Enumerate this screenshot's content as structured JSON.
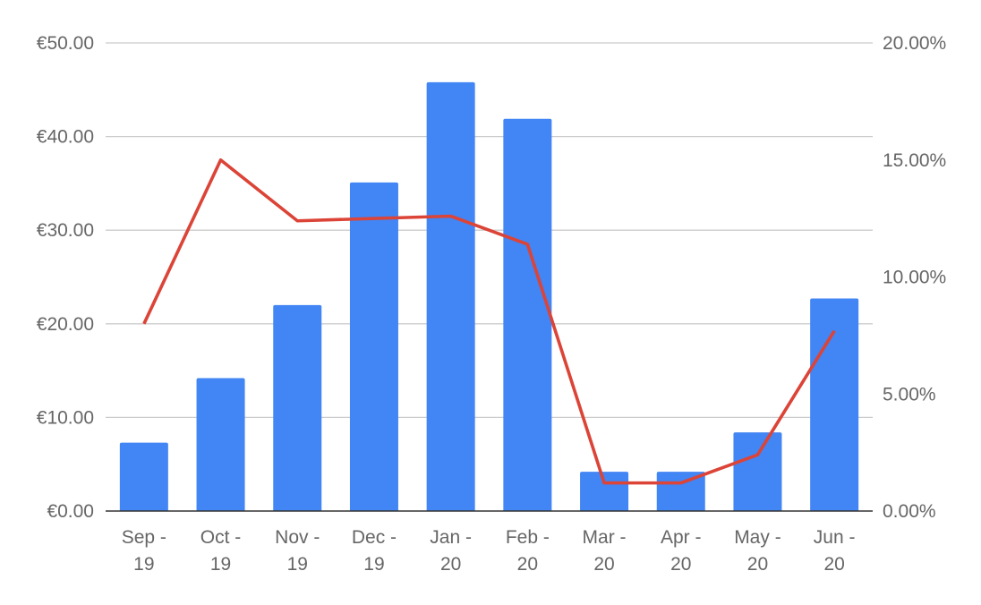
{
  "chart_data": {
    "type": "bar",
    "categories": [
      "Sep - 19",
      "Oct - 19",
      "Nov - 19",
      "Dec - 19",
      "Jan - 20",
      "Feb - 20",
      "Mar - 20",
      "Apr - 20",
      "May - 20",
      "Jun - 20"
    ],
    "category_lines": [
      [
        "Sep -",
        "19"
      ],
      [
        "Oct -",
        "19"
      ],
      [
        "Nov -",
        "19"
      ],
      [
        "Dec -",
        "19"
      ],
      [
        "Jan -",
        "20"
      ],
      [
        "Feb -",
        "20"
      ],
      [
        "Mar -",
        "20"
      ],
      [
        "Apr -",
        "20"
      ],
      [
        "May -",
        "20"
      ],
      [
        "Jun -",
        "20"
      ]
    ],
    "series": [
      {
        "type": "bar",
        "axis": "left",
        "color": "#4285f4",
        "values": [
          7.3,
          14.2,
          22.0,
          35.1,
          45.8,
          41.9,
          4.2,
          4.2,
          8.4,
          22.7
        ]
      },
      {
        "type": "line",
        "axis": "right",
        "color": "#db4437",
        "values": [
          8.0,
          15.0,
          12.4,
          12.5,
          12.6,
          11.4,
          1.2,
          1.2,
          2.4,
          7.7
        ]
      }
    ],
    "y_left": {
      "min": 0,
      "max": 50,
      "ticks": [
        0,
        10,
        20,
        30,
        40,
        50
      ],
      "tick_labels": [
        "€0.00",
        "€10.00",
        "€20.00",
        "€30.00",
        "€40.00",
        "€50.00"
      ]
    },
    "y_right": {
      "min": 0,
      "max": 20,
      "ticks": [
        0,
        5,
        10,
        15,
        20
      ],
      "tick_labels": [
        "0.00%",
        "5.00%",
        "10.00%",
        "15.00%",
        "20.00%"
      ]
    },
    "grid": true,
    "legend": "none",
    "title": "",
    "xlabel": "",
    "ylabel": ""
  }
}
